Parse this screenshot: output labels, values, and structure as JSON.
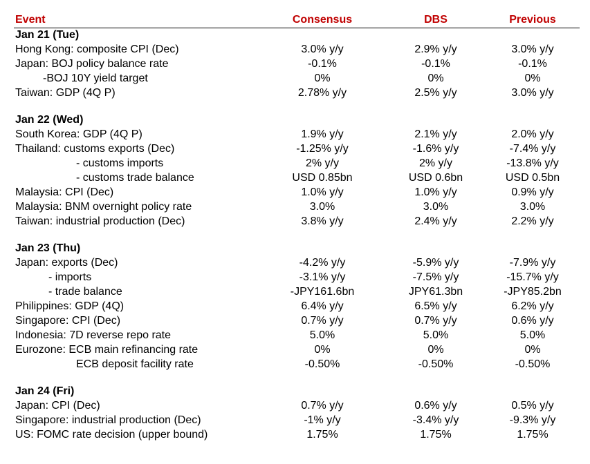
{
  "header": {
    "event": "Event",
    "consensus": "Consensus",
    "dbs": "DBS",
    "previous": "Previous"
  },
  "sections": [
    {
      "title": "Jan 21 (Tue)",
      "rows": [
        {
          "event": "Hong Kong: composite CPI (Dec)",
          "indent": 0,
          "consensus": "3.0% y/y",
          "dbs": "2.9% y/y",
          "previous": "3.0% y/y"
        },
        {
          "event": "Japan: BOJ policy balance rate",
          "indent": 0,
          "consensus": "-0.1%",
          "dbs": "-0.1%",
          "previous": "-0.1%"
        },
        {
          "event": "-BOJ 10Y yield target",
          "indent": 40,
          "consensus": "0%",
          "dbs": "0%",
          "previous": "0%"
        },
        {
          "event": "Taiwan: GDP (4Q P)",
          "indent": 0,
          "consensus": "2.78% y/y",
          "dbs": "2.5% y/y",
          "previous": "3.0% y/y"
        }
      ]
    },
    {
      "title": "Jan 22 (Wed)",
      "rows": [
        {
          "event": "South Korea: GDP (4Q P)",
          "indent": 0,
          "consensus": "1.9% y/y",
          "dbs": "2.1% y/y",
          "previous": "2.0% y/y"
        },
        {
          "event": "Thailand: customs exports (Dec)",
          "indent": 0,
          "consensus": "-1.25% y/y",
          "dbs": "-1.6% y/y",
          "previous": "-7.4% y/y"
        },
        {
          "event": "- customs imports",
          "indent": 88,
          "consensus": "2% y/y",
          "dbs": "2% y/y",
          "previous": "-13.8% y/y"
        },
        {
          "event": "- customs trade balance",
          "indent": 88,
          "consensus": "USD 0.85bn",
          "dbs": "USD 0.6bn",
          "previous": "USD 0.5bn"
        },
        {
          "event": "Malaysia: CPI (Dec)",
          "indent": 0,
          "consensus": "1.0% y/y",
          "dbs": "1.0% y/y",
          "previous": "0.9% y/y"
        },
        {
          "event": "Malaysia: BNM overnight policy rate",
          "indent": 0,
          "consensus": "3.0%",
          "dbs": "3.0%",
          "previous": "3.0%"
        },
        {
          "event": "Taiwan: industrial production (Dec)",
          "indent": 0,
          "consensus": "3.8% y/y",
          "dbs": "2.4% y/y",
          "previous": "2.2% y/y"
        }
      ]
    },
    {
      "title": "Jan 23 (Thu)",
      "rows": [
        {
          "event": "Japan: exports (Dec)",
          "indent": 0,
          "consensus": "-4.2% y/y",
          "dbs": "-5.9% y/y",
          "previous": "-7.9% y/y"
        },
        {
          "event": "- imports",
          "indent": 48,
          "consensus": "-3.1% y/y",
          "dbs": "-7.5% y/y",
          "previous": "-15.7% y/y"
        },
        {
          "event": "- trade balance",
          "indent": 48,
          "consensus": "-JPY161.6bn",
          "dbs": "JPY61.3bn",
          "previous": "-JPY85.2bn"
        },
        {
          "event": "Philippines: GDP (4Q)",
          "indent": 0,
          "consensus": "6.4% y/y",
          "dbs": "6.5% y/y",
          "previous": "6.2% y/y"
        },
        {
          "event": "Singapore: CPI (Dec)",
          "indent": 0,
          "consensus": "0.7% y/y",
          "dbs": "0.7% y/y",
          "previous": "0.6% y/y"
        },
        {
          "event": "Indonesia: 7D reverse repo rate",
          "indent": 0,
          "consensus": "5.0%",
          "dbs": "5.0%",
          "previous": "5.0%"
        },
        {
          "event": "Eurozone: ECB main refinancing rate",
          "indent": 0,
          "consensus": "0%",
          "dbs": "0%",
          "previous": "0%"
        },
        {
          "event": "ECB deposit facility rate",
          "indent": 88,
          "consensus": "-0.50%",
          "dbs": "-0.50%",
          "previous": "-0.50%"
        }
      ]
    },
    {
      "title": "Jan 24 (Fri)",
      "rows": [
        {
          "event": "Japan: CPI (Dec)",
          "indent": 0,
          "consensus": "0.7% y/y",
          "dbs": "0.6% y/y",
          "previous": "0.5% y/y"
        },
        {
          "event": "Singapore: industrial production (Dec)",
          "indent": 0,
          "consensus": "-1% y/y",
          "dbs": "-3.4% y/y",
          "previous": "-9.3% y/y"
        },
        {
          "event": "US: FOMC rate decision (upper bound)",
          "indent": 0,
          "consensus": "1.75%",
          "dbs": "1.75%",
          "previous": "1.75%"
        }
      ]
    }
  ]
}
